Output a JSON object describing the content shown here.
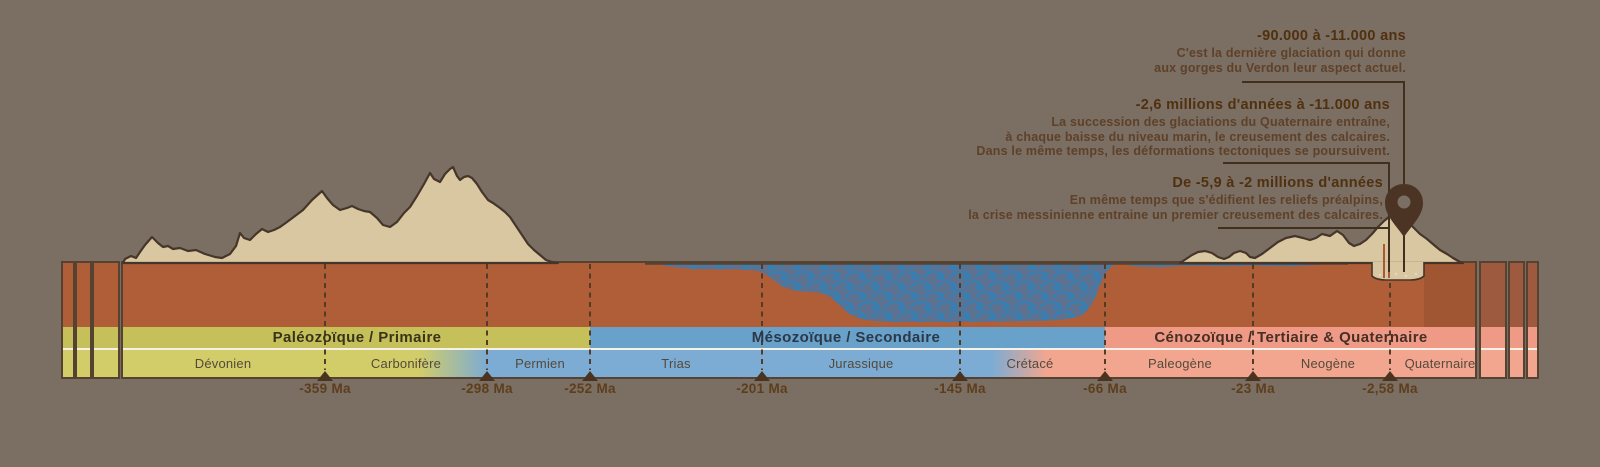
{
  "colors": {
    "background": "#7b6e63",
    "bedrock_rust": "#b05e38",
    "terrain_tan": "#d9c7a2",
    "terrain_outline": "#46362a",
    "sea_fill": "#5c7290",
    "sea_wave": "#2e82bb",
    "separator_white": "#f6f1e6",
    "boundary_dash": "#523c28",
    "connector_line": "#42301f",
    "pin": "#4c3424",
    "date_text": "#5d3e1c",
    "period_text": "#54493b",
    "annotation_title_text": "#50310f",
    "annotation_body_text": "#5e4128"
  },
  "timeline": {
    "eras": [
      {
        "label": "Paléozoïque / Primaire",
        "band_color": "#c6c05a",
        "text_color": "#3a331c"
      },
      {
        "label": "Mésozoïque / Secondaire",
        "band_color": "#68a1ca",
        "text_color": "#2c3847"
      },
      {
        "label": "Cénozoïque / Tertiaire & Quaternaire",
        "band_color": "#ef9a86",
        "text_color": "#472f26"
      }
    ],
    "periods": [
      {
        "label": "Dévonien",
        "band_color": "#d2cd69"
      },
      {
        "label": "Carbonifère",
        "band_color": "#d2cd69",
        "blend_to": "#7cacd3"
      },
      {
        "label": "Permien",
        "band_color": "#7cacd3"
      },
      {
        "label": "Trias",
        "band_color": "#7cacd3"
      },
      {
        "label": "Jurassique",
        "band_color": "#7cacd3"
      },
      {
        "label": "Crétacé",
        "band_color": "#7cacd3",
        "blend_to": "#f2a68f"
      },
      {
        "label": "Paleogène",
        "band_color": "#f2a68f"
      },
      {
        "label": "Neogène",
        "band_color": "#f2a68f"
      },
      {
        "label": "Quaternaire",
        "band_color": "#f2a68f"
      }
    ],
    "boundaries": [
      {
        "label": "-359 Ma"
      },
      {
        "label": "-298 Ma"
      },
      {
        "label": "-252 Ma"
      },
      {
        "label": "-201 Ma"
      },
      {
        "label": "-145 Ma"
      },
      {
        "label": "-66 Ma"
      },
      {
        "label": "-23 Ma"
      },
      {
        "label": "-2,58 Ma"
      }
    ]
  },
  "annotations": [
    {
      "title": "-90.000 à -11.000 ans",
      "lines": [
        "C'est la dernière glaciation qui donne",
        "aux gorges du Verdon leur aspect actuel."
      ]
    },
    {
      "title": "-2,6 millions d'années à -11.000 ans",
      "lines": [
        "La succession des glaciations du Quaternaire entraîne,",
        "à chaque baisse du niveau marin, le creusement des calcaires.",
        "Dans le même temps, les déformations tectoniques se poursuivent."
      ]
    },
    {
      "title": "De -5,9 à -2 millions d'années",
      "lines": [
        "En même temps que s'édifient les reliefs préalpins,",
        "la crise messinienne entraine un premier creusement des calcaires."
      ]
    }
  ],
  "icons": {
    "map_pin": "map-pin"
  },
  "edge_bars": {
    "left": {
      "rust": "#b05e38",
      "era": "#c6c05a",
      "period": "#d2cd69"
    },
    "right": {
      "rust": "#9d5a3e",
      "era": "#ef9a86",
      "period": "#f2a68f"
    }
  }
}
